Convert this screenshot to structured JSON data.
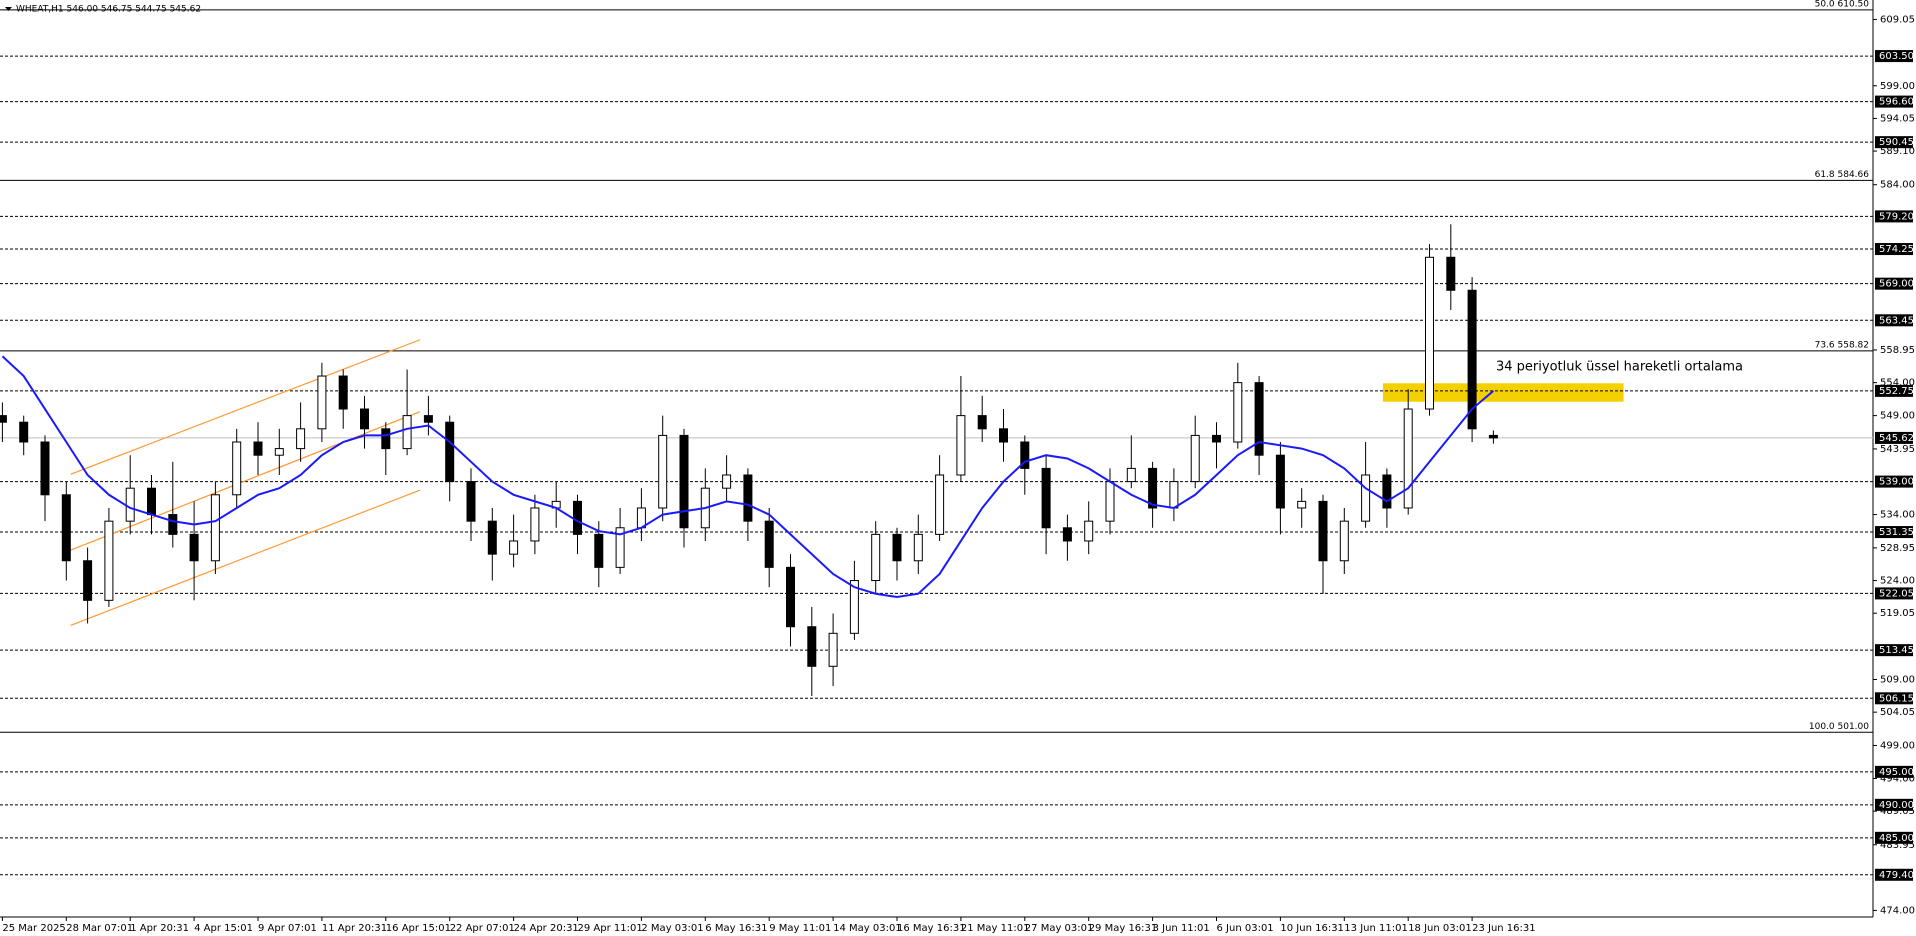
{
  "chart_data": {
    "type": "candlestick",
    "title": "WHEAT,H1  546.00 546.75 544.75 545.62",
    "annotation": "34 periyotluk üssel hareketli ortalama",
    "categories": [
      "25 Mar 2025",
      null,
      null,
      "28 Mar 07:01",
      null,
      null,
      "1 Apr 20:31",
      null,
      null,
      "4 Apr 15:01",
      null,
      null,
      "9 Apr 07:01",
      null,
      null,
      "11 Apr 20:31",
      null,
      null,
      "16 Apr 15:01",
      null,
      null,
      "22 Apr 07:01",
      null,
      null,
      "24 Apr 20:31",
      null,
      null,
      "29 Apr 11:01",
      null,
      null,
      "2 May 03:01",
      null,
      null,
      "6 May 16:31",
      null,
      null,
      "9 May 11:01",
      null,
      null,
      "14 May 03:01",
      null,
      null,
      "16 May 16:31",
      null,
      null,
      "21 May 11:01",
      null,
      null,
      "27 May 03:01",
      null,
      null,
      "29 May 16:31",
      null,
      null,
      "3 Jun 11:01",
      null,
      null,
      "6 Jun 03:01",
      null,
      null,
      "10 Jun 16:31",
      null,
      null,
      "13 Jun 11:01",
      null,
      null,
      "18 Jun 03:01",
      null,
      null,
      "23 Jun 16:31",
      null
    ],
    "candles": [
      [
        549,
        551,
        545,
        548
      ],
      [
        548,
        549,
        543,
        545
      ],
      [
        545,
        546,
        533,
        537
      ],
      [
        537,
        539,
        524,
        527
      ],
      [
        527,
        529,
        517.5,
        521
      ],
      [
        521,
        535,
        520,
        533
      ],
      [
        533,
        543,
        531,
        538
      ],
      [
        538,
        540,
        531,
        534
      ],
      [
        534,
        542,
        529,
        531
      ],
      [
        531,
        536,
        521,
        527
      ],
      [
        527,
        539,
        525,
        537
      ],
      [
        537,
        547,
        535,
        545
      ],
      [
        545,
        548,
        540,
        543
      ],
      [
        543,
        547,
        540,
        544
      ],
      [
        544,
        551,
        542,
        547
      ],
      [
        547,
        557,
        545,
        555
      ],
      [
        555,
        556,
        547,
        550
      ],
      [
        550,
        552,
        544,
        547
      ],
      [
        547,
        548,
        540,
        544
      ],
      [
        544,
        556,
        543,
        549
      ],
      [
        549,
        552,
        546,
        548
      ],
      [
        548,
        549,
        536,
        539
      ],
      [
        539,
        541,
        530,
        533
      ],
      [
        533,
        535,
        524,
        528
      ],
      [
        528,
        534,
        526,
        530
      ],
      [
        530,
        537,
        528,
        535
      ],
      [
        535,
        539,
        532,
        536
      ],
      [
        536,
        537,
        528,
        531
      ],
      [
        531,
        533,
        523,
        526
      ],
      [
        526,
        535,
        525,
        532
      ],
      [
        532,
        538,
        530,
        535
      ],
      [
        535,
        549,
        533,
        546
      ],
      [
        546,
        547,
        529,
        532
      ],
      [
        532,
        541,
        530,
        538
      ],
      [
        538,
        543,
        536,
        540
      ],
      [
        540,
        541,
        530,
        533
      ],
      [
        533,
        535,
        523,
        526
      ],
      [
        526,
        528,
        514,
        517
      ],
      [
        517,
        520,
        506.5,
        511
      ],
      [
        511,
        519,
        508,
        516
      ],
      [
        516,
        527,
        515,
        524
      ],
      [
        524,
        533,
        522,
        531
      ],
      [
        531,
        532,
        524,
        527
      ],
      [
        527,
        534,
        525,
        531
      ],
      [
        531,
        543,
        530,
        540
      ],
      [
        540,
        555,
        539,
        549
      ],
      [
        549,
        552,
        545,
        547
      ],
      [
        547,
        550,
        542,
        545
      ],
      [
        545,
        546,
        537,
        541
      ],
      [
        541,
        543,
        528,
        532
      ],
      [
        532,
        534,
        527,
        530
      ],
      [
        530,
        536,
        528,
        533
      ],
      [
        533,
        541,
        531,
        539
      ],
      [
        539,
        546,
        538,
        541
      ],
      [
        541,
        542,
        532,
        535
      ],
      [
        535,
        541,
        533,
        539
      ],
      [
        539,
        549,
        538,
        546
      ],
      [
        546,
        548,
        541,
        545
      ],
      [
        545,
        557,
        544,
        554
      ],
      [
        554,
        555,
        540,
        543
      ],
      [
        543,
        545,
        531,
        535
      ],
      [
        535,
        538,
        532,
        536
      ],
      [
        536,
        537,
        522,
        527
      ],
      [
        527,
        535,
        525,
        533
      ],
      [
        533,
        545,
        532,
        540
      ],
      [
        540,
        541,
        532,
        535
      ],
      [
        535,
        553,
        534,
        550
      ],
      [
        550,
        575,
        549,
        573
      ],
      [
        573,
        578,
        565,
        568
      ],
      [
        568,
        570,
        545,
        547
      ],
      [
        546,
        546.75,
        544.75,
        545.62
      ]
    ],
    "ema": [
      558,
      555,
      550,
      545,
      540,
      537,
      535,
      534,
      533,
      532.5,
      533,
      535,
      537,
      538,
      540,
      543,
      545,
      546,
      546,
      547,
      547.5,
      545,
      542,
      539,
      537,
      536,
      535,
      533,
      531.5,
      531,
      532,
      534,
      534.5,
      535,
      536,
      535.5,
      534,
      531,
      528,
      525,
      523,
      522,
      521.5,
      522,
      525,
      530,
      535,
      539,
      542,
      543,
      542.5,
      541,
      539,
      537,
      535.5,
      535,
      537,
      540,
      543,
      545,
      544.5,
      544,
      543,
      541,
      538,
      536,
      538,
      542,
      546,
      550,
      552.75
    ],
    "colors": {
      "up": "#ffffff",
      "down": "#000000",
      "ema": "#1a1aff",
      "channel": "#ff9933",
      "zone": "#f5d000",
      "annotation": "#2222dd"
    },
    "ylim": [
      473,
      612
    ],
    "yticks": [
      {
        "value": 609.05,
        "label": "609.05"
      },
      {
        "value": 599,
        "label": "599.00"
      },
      {
        "value": 594.05,
        "label": "594.05"
      },
      {
        "value": 589.1,
        "label": "589.10"
      },
      {
        "value": 584,
        "label": "584.00"
      },
      {
        "value": 558.95,
        "label": "558.95"
      },
      {
        "value": 554,
        "label": "554.00"
      },
      {
        "value": 549,
        "label": "549.00"
      },
      {
        "value": 543.95,
        "label": "543.95"
      },
      {
        "value": 534,
        "label": "534.00"
      },
      {
        "value": 528.95,
        "label": "528.95"
      },
      {
        "value": 524,
        "label": "524.00"
      },
      {
        "value": 519.05,
        "label": "519.05"
      },
      {
        "value": 509,
        "label": "509.00"
      },
      {
        "value": 504.05,
        "label": "504.05"
      },
      {
        "value": 499,
        "label": "499.00"
      },
      {
        "value": 494,
        "label": "494.00"
      },
      {
        "value": 489.05,
        "label": "489.05"
      },
      {
        "value": 483.95,
        "label": "483.95"
      },
      {
        "value": 474,
        "label": "474.00"
      }
    ],
    "levels": [
      {
        "value": 603.5,
        "label": "603.50"
      },
      {
        "value": 596.6,
        "label": "596.60"
      },
      {
        "value": 590.45,
        "label": "590.45"
      },
      {
        "value": 579.2,
        "label": "579.20"
      },
      {
        "value": 574.25,
        "label": "574.25"
      },
      {
        "value": 569,
        "label": "569.00"
      },
      {
        "value": 563.45,
        "label": "563.45"
      },
      {
        "value": 552.75,
        "label": "552.75"
      },
      {
        "value": 539,
        "label": "539.00"
      },
      {
        "value": 531.35,
        "label": "531.35"
      },
      {
        "value": 522.05,
        "label": "522.05"
      },
      {
        "value": 513.45,
        "label": "513.45"
      },
      {
        "value": 506.15,
        "label": "506.15"
      },
      {
        "value": 495,
        "label": "495.00"
      },
      {
        "value": 490,
        "label": "490.00"
      },
      {
        "value": 485,
        "label": "485.00"
      },
      {
        "value": 479.4,
        "label": "479.40"
      }
    ],
    "current_price": {
      "value": 545.62,
      "label": "545.62"
    },
    "fib_levels": [
      {
        "value": 610.5,
        "label": "50.0 610.50"
      },
      {
        "value": 584.66,
        "label": "61.8 584.66"
      },
      {
        "value": 558.82,
        "label": "73.6 558.82"
      },
      {
        "value": 501,
        "label": "100.0 501.00"
      }
    ],
    "channel_lines": [
      {
        "start": 540.1,
        "end": 560.5
      },
      {
        "start": 528.6,
        "end": 549.6
      },
      {
        "start": 517.2,
        "end": 537.7
      }
    ],
    "zone": {
      "low": 551.1,
      "high": 553.9
    }
  }
}
